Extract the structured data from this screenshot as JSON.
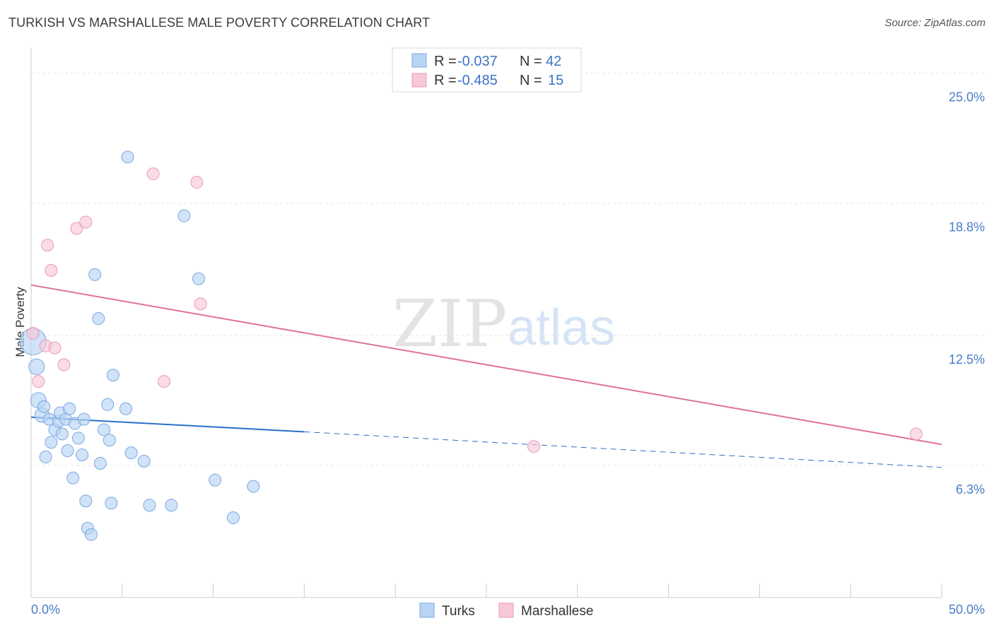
{
  "header": {
    "title": "TURKISH VS MARSHALLESE MALE POVERTY CORRELATION CHART",
    "source": "Source: ZipAtlas.com"
  },
  "watermark": {
    "zip": "ZIP",
    "atlas": "atlas"
  },
  "legend": {
    "turks": {
      "r_label": "R = ",
      "r_value": "-0.037",
      "n_label": "N = ",
      "n_value": "42"
    },
    "marshallese": {
      "r_label": "R = ",
      "r_value": "-0.485",
      "n_label": "N = ",
      "n_value": "15"
    }
  },
  "bottom_legend": {
    "turks": "Turks",
    "marshallese": "Marshallese"
  },
  "colors": {
    "turks_fill": "#b8d4f5",
    "turks_stroke": "#7aa8df",
    "turks_line": "#2a6fc9",
    "marsh_fill": "#f8c8d8",
    "marsh_stroke": "#eb9ab6",
    "marsh_line": "#e0709a",
    "grid": "#e6e6e6",
    "tick_text": "#4a7cc7"
  },
  "chart_data": {
    "type": "scatter",
    "title": "TURKISH VS MARSHALLESE MALE POVERTY CORRELATION CHART",
    "xlabel": "",
    "ylabel": "Male Poverty",
    "xlim": [
      0,
      50
    ],
    "ylim": [
      0,
      26.2
    ],
    "y_ticks": [
      {
        "value": 6.3,
        "label": "6.3%"
      },
      {
        "value": 12.5,
        "label": "12.5%"
      },
      {
        "value": 18.8,
        "label": "18.8%"
      },
      {
        "value": 25.0,
        "label": "25.0%"
      }
    ],
    "x_tick_labels": {
      "min": "0.0%",
      "max": "50.0%"
    },
    "x_tick_values": [
      0,
      5,
      10,
      15,
      20,
      25,
      30,
      35,
      40,
      45,
      50
    ],
    "series": [
      {
        "name": "Turks",
        "points": [
          [
            0.1,
            12.2,
            2.2
          ],
          [
            0.3,
            11.0,
            1.3
          ],
          [
            0.4,
            9.4,
            1.3
          ],
          [
            0.6,
            8.7,
            1.2
          ],
          [
            0.7,
            9.1,
            1.0
          ],
          [
            0.8,
            6.7,
            1.0
          ],
          [
            1.0,
            8.5,
            1.0
          ],
          [
            1.1,
            7.4,
            1.0
          ],
          [
            1.3,
            8.0,
            1.0
          ],
          [
            1.5,
            8.4,
            1.0
          ],
          [
            1.6,
            8.8,
            1.0
          ],
          [
            1.7,
            7.8,
            1.0
          ],
          [
            1.9,
            8.5,
            1.0
          ],
          [
            2.0,
            7.0,
            1.0
          ],
          [
            2.1,
            9.0,
            1.0
          ],
          [
            2.3,
            5.7,
            1.0
          ],
          [
            2.4,
            8.3,
            1.0
          ],
          [
            2.6,
            7.6,
            1.0
          ],
          [
            2.8,
            6.8,
            1.0
          ],
          [
            2.9,
            8.5,
            1.0
          ],
          [
            3.0,
            4.6,
            1.0
          ],
          [
            3.1,
            3.3,
            1.0
          ],
          [
            3.3,
            3.0,
            1.0
          ],
          [
            3.5,
            15.4,
            1.0
          ],
          [
            3.7,
            13.3,
            1.0
          ],
          [
            3.8,
            6.4,
            1.0
          ],
          [
            4.0,
            8.0,
            1.0
          ],
          [
            4.2,
            9.2,
            1.0
          ],
          [
            4.3,
            7.5,
            1.0
          ],
          [
            4.4,
            4.5,
            1.0
          ],
          [
            4.5,
            10.6,
            1.0
          ],
          [
            5.2,
            9.0,
            1.0
          ],
          [
            5.3,
            21.0,
            1.0
          ],
          [
            5.5,
            6.9,
            1.0
          ],
          [
            6.2,
            6.5,
            1.0
          ],
          [
            6.5,
            4.4,
            1.0
          ],
          [
            7.7,
            4.4,
            1.0
          ],
          [
            8.4,
            18.2,
            1.0
          ],
          [
            9.2,
            15.2,
            1.0
          ],
          [
            10.1,
            5.6,
            1.0
          ],
          [
            11.1,
            3.8,
            1.0
          ],
          [
            12.2,
            5.3,
            1.0
          ]
        ],
        "trend": {
          "x1": 0,
          "y1": 8.6,
          "x2": 15,
          "y2": 7.9,
          "dash_to_x": 50,
          "dash_to_y": 6.2
        }
      },
      {
        "name": "Marshallese",
        "points": [
          [
            0.1,
            12.6,
            1.0
          ],
          [
            0.4,
            10.3,
            1.0
          ],
          [
            0.8,
            12.0,
            1.0
          ],
          [
            0.9,
            16.8,
            1.0
          ],
          [
            1.1,
            15.6,
            1.0
          ],
          [
            1.3,
            11.9,
            1.0
          ],
          [
            1.8,
            11.1,
            1.0
          ],
          [
            2.5,
            17.6,
            1.0
          ],
          [
            3.0,
            17.9,
            1.0
          ],
          [
            6.7,
            20.2,
            1.0
          ],
          [
            7.3,
            10.3,
            1.0
          ],
          [
            9.1,
            19.8,
            1.0
          ],
          [
            9.3,
            14.0,
            1.0
          ],
          [
            27.6,
            7.2,
            1.0
          ],
          [
            48.6,
            7.8,
            1.0
          ]
        ],
        "trend": {
          "x1": 0,
          "y1": 14.9,
          "x2": 50,
          "y2": 7.3
        }
      }
    ]
  }
}
